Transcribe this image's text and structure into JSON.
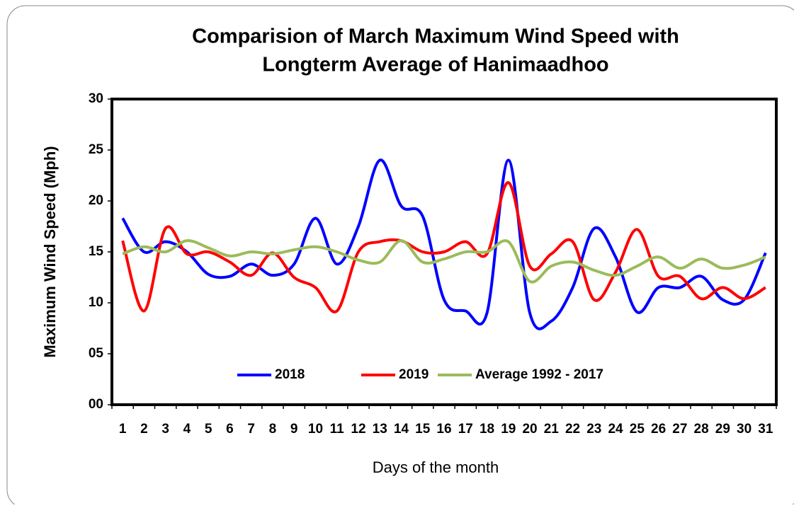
{
  "chart_data": {
    "type": "line",
    "title": [
      "Comparision of March Maximum Wind Speed with",
      "Longterm Average of Hanimaadhoo"
    ],
    "x_label": "Days of the month",
    "y_label": "Maximum Wind Speed (Mph)",
    "categories": [
      "1",
      "2",
      "3",
      "4",
      "5",
      "6",
      "7",
      "8",
      "9",
      "10",
      "11",
      "12",
      "13",
      "14",
      "15",
      "16",
      "17",
      "18",
      "19",
      "20",
      "21",
      "22",
      "23",
      "24",
      "25",
      "26",
      "27",
      "28",
      "29",
      "30",
      "31"
    ],
    "series": [
      {
        "name": "2018",
        "color": "#0000ff",
        "values": [
          18.3,
          15.0,
          16.0,
          15.0,
          12.8,
          12.6,
          13.8,
          12.7,
          13.8,
          18.3,
          13.8,
          17.5,
          24.0,
          19.5,
          18.5,
          10.3,
          9.2,
          9.0,
          24.0,
          9.0,
          8.2,
          11.5,
          17.3,
          14.5,
          9.1,
          11.5,
          11.5,
          12.6,
          10.3,
          10.3,
          14.9
        ]
      },
      {
        "name": "2019",
        "color": "#ff0000",
        "values": [
          16.1,
          9.2,
          17.3,
          14.8,
          15.0,
          14.0,
          12.7,
          14.9,
          12.5,
          11.5,
          9.2,
          15.0,
          16.0,
          16.1,
          15.0,
          15.0,
          16.0,
          14.8,
          21.8,
          13.6,
          14.8,
          16.0,
          10.3,
          13.0,
          17.2,
          12.6,
          12.6,
          10.4,
          11.5,
          10.4,
          11.5
        ]
      },
      {
        "name": "Average 1992 - 2017",
        "color": "#9bbb59",
        "values": [
          14.8,
          15.5,
          15.0,
          16.1,
          15.4,
          14.6,
          15.0,
          14.8,
          15.2,
          15.5,
          15.0,
          14.2,
          14.0,
          16.1,
          14.0,
          14.3,
          15.0,
          15.0,
          16.0,
          12.1,
          13.6,
          14.0,
          13.2,
          12.7,
          13.6,
          14.5,
          13.4,
          14.3,
          13.4,
          13.7,
          14.5
        ]
      }
    ],
    "ylim": [
      0,
      30
    ],
    "yticks": [
      {
        "value": 0,
        "label": "00"
      },
      {
        "value": 5,
        "label": "05"
      },
      10,
      15,
      20,
      25,
      30
    ],
    "legend": "bottom",
    "smooth": true
  }
}
